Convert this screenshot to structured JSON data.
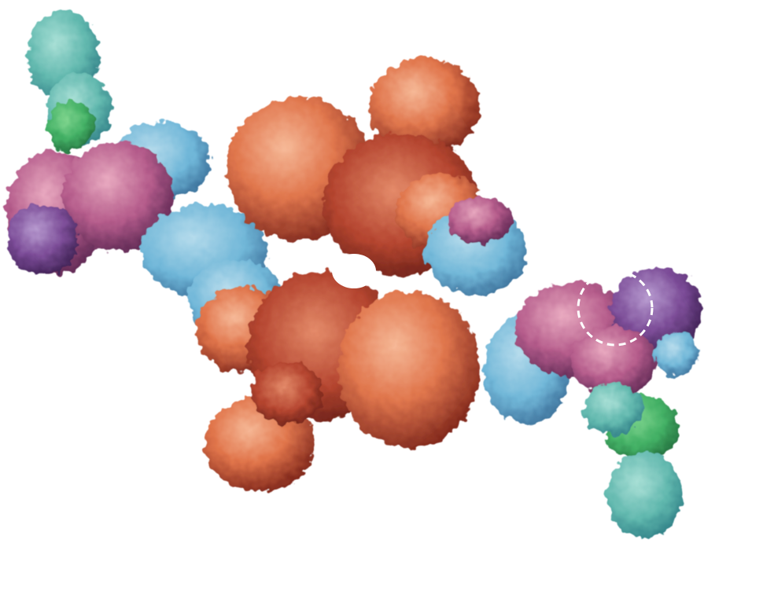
{
  "image": {
    "subject": "protein-surface-render",
    "background_color": "#ffffff",
    "palette": {
      "teal": "#5fb7ad",
      "light_teal": "#8fd0c8",
      "green": "#3fae62",
      "blue": "#6fb6d8",
      "steel_blue": "#7b95c4",
      "purple": "#7a4a96",
      "magenta": "#b45a8a",
      "pink": "#d98aa3",
      "red": "#b3422c",
      "orange": "#e0744a",
      "peach": "#f0a27a"
    },
    "marker": {
      "style": "dashed-circle",
      "color": "#ffffff"
    }
  }
}
